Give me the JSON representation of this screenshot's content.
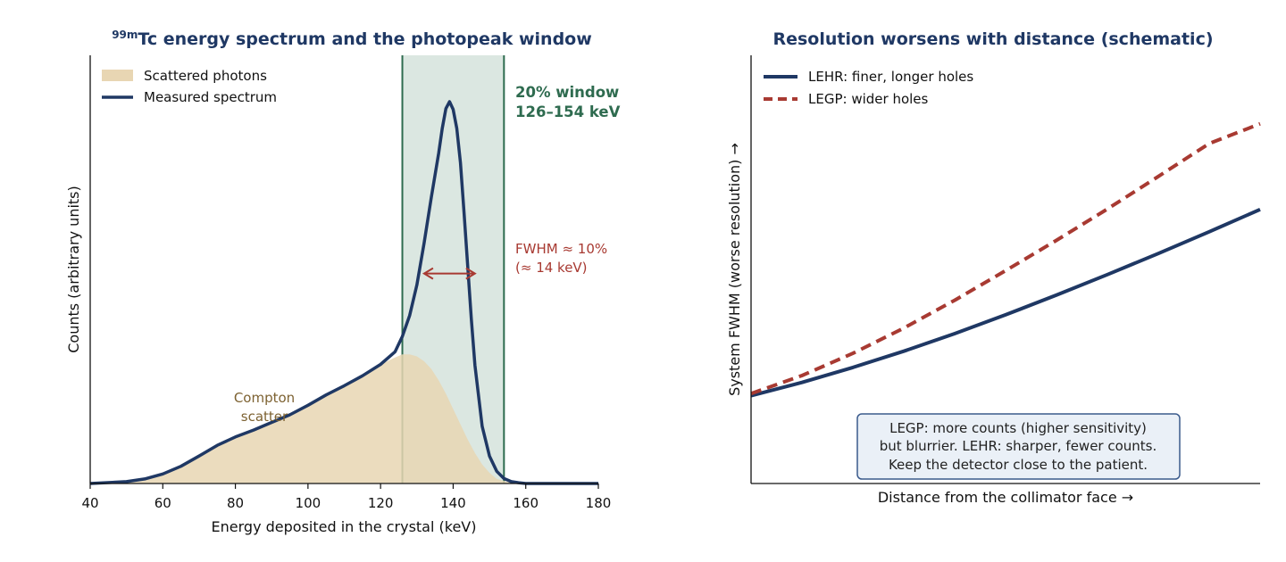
{
  "chart_data": [
    {
      "type": "area",
      "title_sup": "99m",
      "title": "Tc energy spectrum and the photopeak window",
      "xlabel": "Energy deposited in the crystal (keV)",
      "ylabel": "Counts (arbitrary units)",
      "xlim": [
        40,
        180
      ],
      "ylim": [
        0,
        1.0
      ],
      "xticks": [
        40,
        60,
        80,
        100,
        120,
        140,
        160,
        180
      ],
      "legend_position": "upper-left",
      "legend": [
        {
          "label": "Scattered photons",
          "style": "fill",
          "color": "#e8d6b3"
        },
        {
          "label": "Measured spectrum",
          "style": "line",
          "color": "#1f3864"
        }
      ],
      "series": [
        {
          "name": "Scattered photons",
          "kind": "area",
          "color": "#e8d6b3",
          "x": [
            40,
            50,
            55,
            60,
            65,
            70,
            75,
            80,
            85,
            90,
            95,
            100,
            105,
            110,
            115,
            120,
            124,
            126,
            128,
            130,
            132,
            134,
            136,
            138,
            140,
            142,
            144,
            146,
            148,
            150,
            152,
            155,
            158,
            160
          ],
          "y": [
            0.0,
            0.005,
            0.012,
            0.025,
            0.045,
            0.072,
            0.1,
            0.122,
            0.14,
            0.16,
            0.18,
            0.205,
            0.232,
            0.256,
            0.282,
            0.312,
            0.33,
            0.338,
            0.338,
            0.333,
            0.32,
            0.3,
            0.27,
            0.235,
            0.195,
            0.155,
            0.115,
            0.08,
            0.05,
            0.028,
            0.012,
            0.004,
            0.0,
            0.0
          ]
        },
        {
          "name": "Measured spectrum",
          "kind": "line",
          "color": "#1f3864",
          "x": [
            40,
            50,
            55,
            60,
            65,
            70,
            75,
            80,
            85,
            90,
            95,
            100,
            105,
            110,
            115,
            120,
            124,
            126,
            128,
            130,
            132,
            134,
            136,
            137,
            138,
            139,
            140,
            141,
            142,
            143,
            144,
            145,
            146,
            148,
            150,
            152,
            154,
            156,
            158,
            160,
            165,
            170,
            180
          ],
          "y": [
            0.0,
            0.005,
            0.012,
            0.025,
            0.045,
            0.072,
            0.1,
            0.122,
            0.14,
            0.16,
            0.18,
            0.205,
            0.232,
            0.256,
            0.282,
            0.312,
            0.345,
            0.385,
            0.44,
            0.52,
            0.63,
            0.75,
            0.865,
            0.93,
            0.982,
            1.0,
            0.98,
            0.93,
            0.84,
            0.71,
            0.57,
            0.43,
            0.31,
            0.15,
            0.072,
            0.032,
            0.013,
            0.005,
            0.002,
            0.0,
            0.0,
            0.0,
            0.0
          ]
        }
      ],
      "window": {
        "x_from": 126,
        "x_to": 154,
        "label_line1": "20% window",
        "label_line2": "126–154 keV",
        "color": "#2e6b4f"
      },
      "fwhm": {
        "x_from": 132,
        "x_to": 146,
        "y": 0.55,
        "label_line1": "FWHM ≈ 10%",
        "label_line2": "(≈ 14 keV)",
        "color": "#a83a32"
      },
      "annotations": [
        {
          "text_line1": "Compton",
          "text_line2": "scatter",
          "x": 88,
          "y": 0.22,
          "color": "#7d6232"
        }
      ]
    },
    {
      "type": "line",
      "title": "Resolution worsens with distance (schematic)",
      "xlabel": "Distance from the collimator face →",
      "ylabel": "System FWHM (worse resolution) →",
      "xlim": [
        0,
        1.0
      ],
      "ylim": [
        0,
        1.0
      ],
      "xticks": [],
      "yticks": [],
      "legend_position": "upper-left",
      "series": [
        {
          "name": "LEHR: finer, longer holes",
          "color": "#1f3864",
          "dash": "solid",
          "x": [
            0.0,
            0.1,
            0.2,
            0.3,
            0.4,
            0.5,
            0.6,
            0.7,
            0.8,
            0.9,
            1.0
          ],
          "y": [
            0.205,
            0.236,
            0.271,
            0.309,
            0.35,
            0.394,
            0.44,
            0.488,
            0.537,
            0.588,
            0.64
          ]
        },
        {
          "name": "LEGP: wider holes",
          "color": "#a83a32",
          "dash": "dashed",
          "x": [
            0.0,
            0.1,
            0.2,
            0.3,
            0.4,
            0.5,
            0.6,
            0.7,
            0.8,
            0.9,
            1.0
          ],
          "y": [
            0.21,
            0.252,
            0.304,
            0.363,
            0.428,
            0.497,
            0.568,
            0.641,
            0.717,
            0.794,
            0.84
          ]
        }
      ],
      "note_lines": [
        "LEGP: more counts (higher sensitivity)",
        "but blurrier. LEHR: sharper, fewer counts.",
        "Keep the detector close to the patient."
      ]
    }
  ]
}
